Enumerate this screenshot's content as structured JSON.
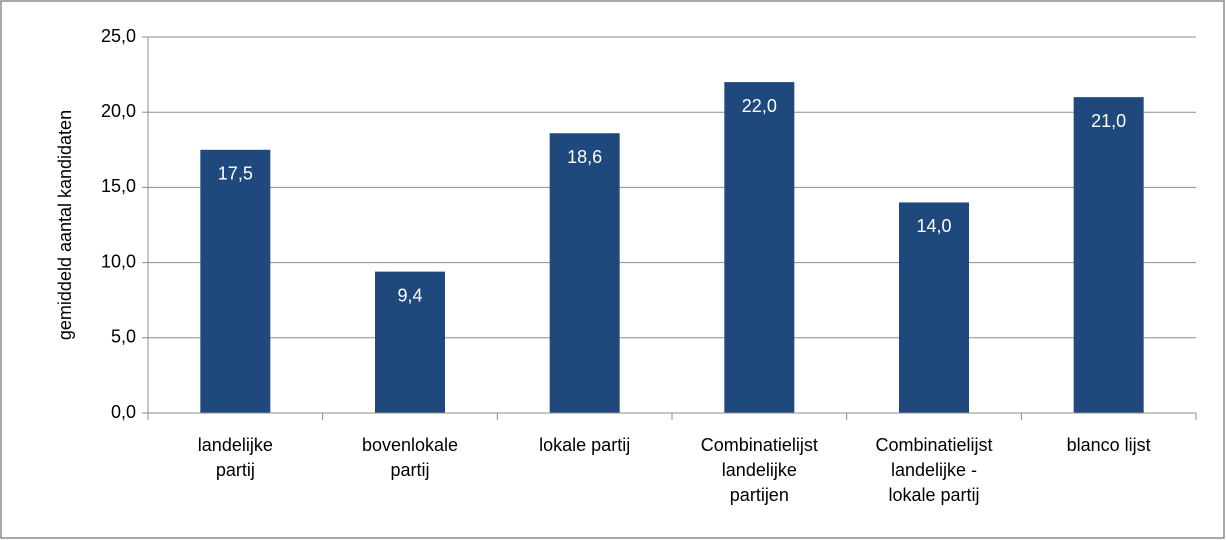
{
  "chart_data": {
    "type": "bar",
    "categories": [
      "landelijke partij",
      "bovenlokale partij",
      "lokale partij",
      "Combinatielijst landelijke partijen",
      "Combinatielijst landelijke - lokale partij",
      "blanco lijst"
    ],
    "values": [
      17.5,
      9.4,
      18.6,
      22.0,
      14.0,
      21.0
    ],
    "value_labels": [
      "17,5",
      "9,4",
      "18,6",
      "22,0",
      "14,0",
      "21,0"
    ],
    "color": "#1f497d",
    "y_label": "gemiddeld aantal kandidaten",
    "ylim": [
      0,
      25
    ],
    "yticks": [
      {
        "value": 0,
        "label": "0,0"
      },
      {
        "value": 5,
        "label": "5,0"
      },
      {
        "value": 10,
        "label": "10,0"
      },
      {
        "value": 15,
        "label": "15,0"
      },
      {
        "value": 20,
        "label": "20,0"
      },
      {
        "value": 25,
        "label": "25,0"
      }
    ],
    "grid": true
  }
}
